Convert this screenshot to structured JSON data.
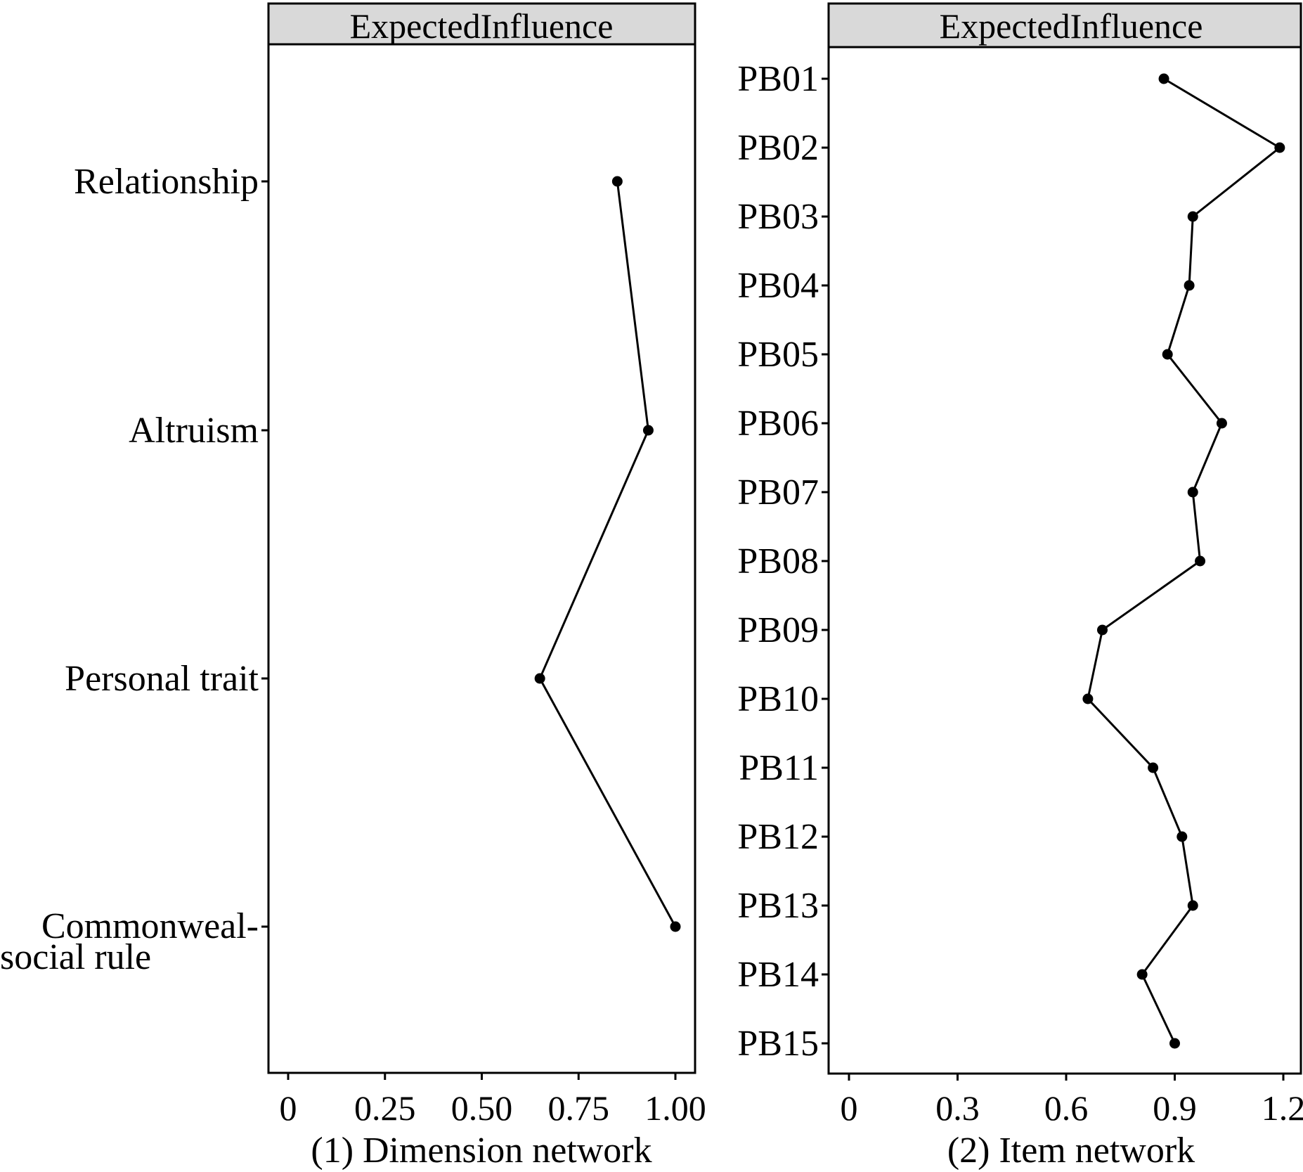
{
  "chart_data": [
    {
      "type": "line",
      "strip_title": "ExpectedInfluence",
      "xlabel": "(1) Dimension network",
      "ylabel": "",
      "categories": [
        "Relationship",
        "Altruism",
        "Personal trait",
        "Commonweal-\nsocial rule"
      ],
      "values": [
        0.85,
        0.93,
        0.65,
        1.0
      ],
      "x_ticks": [
        0,
        0.25,
        0.5,
        0.75,
        1.0
      ],
      "x_tick_labels": [
        "0",
        "0.25",
        "0.50",
        "0.75",
        "1.00"
      ],
      "xlim": [
        -0.05,
        1.05
      ],
      "grid": false,
      "colors": {
        "line": "#000000",
        "point": "#000000",
        "strip_fill": "#d9d9d9"
      }
    },
    {
      "type": "line",
      "strip_title": "ExpectedInfluence",
      "xlabel": "(2) Item network",
      "ylabel": "",
      "categories": [
        "PB01",
        "PB02",
        "PB03",
        "PB04",
        "PB05",
        "PB06",
        "PB07",
        "PB08",
        "PB09",
        "PB10",
        "PB11",
        "PB12",
        "PB13",
        "PB14",
        "PB15"
      ],
      "values": [
        0.87,
        1.19,
        0.95,
        0.94,
        0.88,
        1.03,
        0.95,
        0.97,
        0.7,
        0.66,
        0.84,
        0.92,
        0.95,
        0.81,
        0.9
      ],
      "x_ticks": [
        0,
        0.3,
        0.6,
        0.9,
        1.2
      ],
      "x_tick_labels": [
        "0",
        "0.3",
        "0.6",
        "0.9",
        "1.2"
      ],
      "xlim": [
        -0.06,
        1.23
      ],
      "grid": false,
      "colors": {
        "line": "#000000",
        "point": "#000000",
        "strip_fill": "#d9d9d9"
      }
    }
  ]
}
